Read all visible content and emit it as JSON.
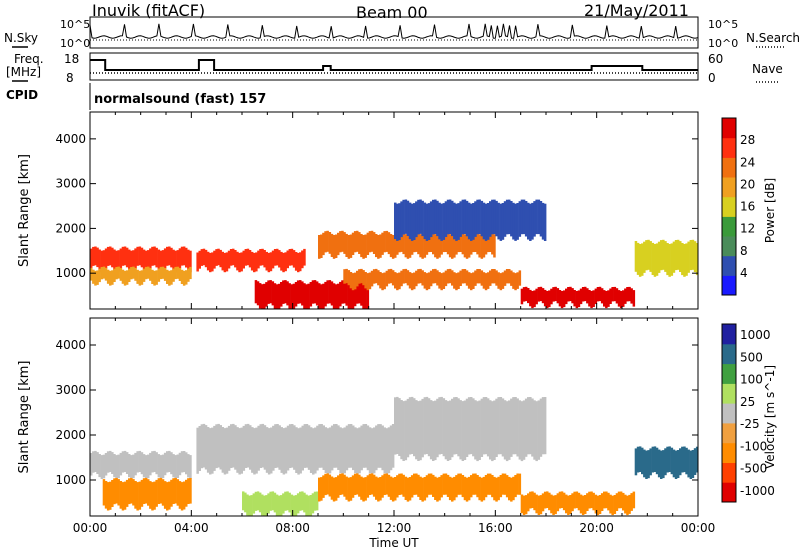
{
  "header": {
    "station": "Inuvik (fitACF)",
    "beam": "Beam 00",
    "date": "21/May/2011"
  },
  "strips": {
    "nsky_label": "N.Sky",
    "nsky_ticks": [
      "10^5",
      "10^0"
    ],
    "nsearch_label": "N.Search",
    "nsearch_ticks": [
      "10^5",
      "10^0"
    ],
    "freq_label_1": "Freq.",
    "freq_label_2": "[MHz]",
    "freq_ticks": [
      "18",
      "8"
    ],
    "nave_label": "Nave",
    "nave_ticks": [
      "60",
      "0"
    ],
    "cpid_label": "CPID",
    "cpid_text": "normalsound (fast) 157"
  },
  "colors": {
    "power": [
      "#1a1aff",
      "#2f4fb0",
      "#4a8c5a",
      "#3a9a3a",
      "#d8d020",
      "#f0a020",
      "#f07010",
      "#ff3010",
      "#e00000"
    ],
    "velocity": [
      "#e00000",
      "#ff4000",
      "#ff8c00",
      "#f0a040",
      "#c0c0c0",
      "#b0e060",
      "#40a040",
      "#2a6a8a",
      "#2020a0"
    ]
  },
  "chart_data": [
    {
      "type": "heatmap",
      "panel": "power",
      "xlabel": "",
      "ylabel": "Slant Range [km]",
      "x_ticks": [
        "00:00",
        "04:00",
        "08:00",
        "12:00",
        "16:00",
        "20:00",
        "00:00"
      ],
      "y_ticks": [
        "1000",
        "2000",
        "3000",
        "4000"
      ],
      "ylim": [
        200,
        4600
      ],
      "colorbar_label": "Power [dB]",
      "colorbar_ticks": [
        "4",
        "8",
        "12",
        "16",
        "20",
        "24",
        "28"
      ],
      "bands": [
        {
          "t0": 0.0,
          "t1": 4.0,
          "r0": 1100,
          "r1": 1550,
          "level": 7
        },
        {
          "t0": 0.0,
          "t1": 4.0,
          "r0": 800,
          "r1": 1100,
          "level": 5
        },
        {
          "t0": 4.2,
          "t1": 8.5,
          "r0": 1100,
          "r1": 1500,
          "level": 7
        },
        {
          "t0": 6.5,
          "t1": 11.0,
          "r0": 250,
          "r1": 800,
          "level": 8
        },
        {
          "t0": 9.0,
          "t1": 16.0,
          "r0": 1400,
          "r1": 1900,
          "level": 6
        },
        {
          "t0": 10.0,
          "t1": 17.0,
          "r0": 700,
          "r1": 1050,
          "level": 6
        },
        {
          "t0": 12.0,
          "t1": 18.0,
          "r0": 1800,
          "r1": 2600,
          "level": 1
        },
        {
          "t0": 17.0,
          "t1": 21.5,
          "r0": 300,
          "r1": 650,
          "level": 8
        },
        {
          "t0": 21.5,
          "t1": 24.0,
          "r0": 1000,
          "r1": 1700,
          "level": 4
        }
      ]
    },
    {
      "type": "heatmap",
      "panel": "velocity",
      "xlabel": "Time UT",
      "ylabel": "Slant Range [km]",
      "x_ticks": [
        "00:00",
        "04:00",
        "08:00",
        "12:00",
        "16:00",
        "20:00",
        "00:00"
      ],
      "y_ticks": [
        "1000",
        "2000",
        "3000",
        "4000"
      ],
      "ylim": [
        200,
        4600
      ],
      "colorbar_label": "Velocity [m s^-1]",
      "colorbar_ticks": [
        "1000",
        "500",
        "100",
        "25",
        "-25",
        "-100",
        "-500",
        "-1000"
      ],
      "bands": [
        {
          "t0": 0.0,
          "t1": 4.0,
          "r0": 1100,
          "r1": 1600,
          "level": 4
        },
        {
          "t0": 0.5,
          "t1": 4.0,
          "r0": 400,
          "r1": 1000,
          "level": 2
        },
        {
          "t0": 4.2,
          "t1": 12.0,
          "r0": 1200,
          "r1": 2200,
          "level": 4
        },
        {
          "t0": 6.0,
          "t1": 9.0,
          "r0": 250,
          "r1": 700,
          "level": 5
        },
        {
          "t0": 9.0,
          "t1": 17.0,
          "r0": 600,
          "r1": 1100,
          "level": 2
        },
        {
          "t0": 12.0,
          "t1": 18.0,
          "r0": 1500,
          "r1": 2800,
          "level": 4
        },
        {
          "t0": 17.0,
          "t1": 21.5,
          "r0": 300,
          "r1": 700,
          "level": 2
        },
        {
          "t0": 21.5,
          "t1": 24.0,
          "r0": 1100,
          "r1": 1700,
          "level": 7
        }
      ]
    }
  ]
}
